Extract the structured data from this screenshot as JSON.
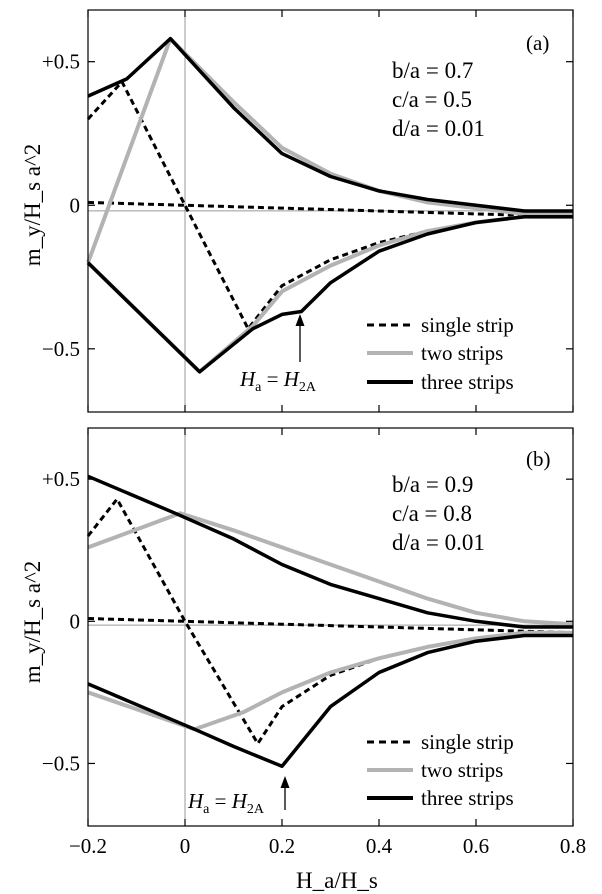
{
  "colors": {
    "dashed": "#000000",
    "gray": "#b3b3b3",
    "black": "#000000"
  },
  "chart_data": [
    {
      "type": "line",
      "panel_label": "(a)",
      "annotation_lines": [
        "b/a = 0.7",
        "c/a = 0.5",
        "d/a = 0.01"
      ],
      "ylabel": "m_y/H_s a^2",
      "xlabel": "",
      "xlim": [
        -0.2,
        0.8
      ],
      "ylim": [
        -0.72,
        0.68
      ],
      "yticks": [
        {
          "value": 0.5,
          "label": "+0.5"
        },
        {
          "value": 0.0,
          "label": "0"
        },
        {
          "value": -0.5,
          "label": "−0.5"
        }
      ],
      "xticks": [
        -0.2,
        0,
        0.2,
        0.4,
        0.6,
        0.8
      ],
      "xtick_labels": [],
      "legend": {
        "position": "bottom-right",
        "entries": [
          "single strip",
          "two strips",
          "three strips"
        ]
      },
      "arrow_annotation": {
        "text": "Ha = H2A",
        "x": 0.24,
        "y": -0.37
      },
      "series": [
        {
          "name": "single strip",
          "style": "dashed",
          "segments": [
            {
              "x": [
                -0.2,
                -0.13,
                0.0,
                0.13,
                0.2,
                0.3,
                0.4,
                0.5,
                0.6,
                0.7,
                0.8
              ],
              "y": [
                0.3,
                0.43,
                0.0,
                -0.43,
                -0.28,
                -0.19,
                -0.13,
                -0.09,
                -0.06,
                -0.04,
                -0.04
              ]
            },
            {
              "x": [
                -0.2,
                0.0,
                0.2,
                0.4,
                0.6,
                0.8
              ],
              "y": [
                0.01,
                0.0,
                -0.01,
                -0.02,
                -0.03,
                -0.04
              ]
            }
          ]
        },
        {
          "name": "two strips",
          "style": "gray",
          "segments": [
            {
              "x": [
                -0.2,
                -0.03,
                0.1,
                0.2,
                0.3,
                0.4,
                0.5,
                0.6,
                0.7,
                0.8
              ],
              "y": [
                -0.2,
                0.58,
                0.36,
                0.2,
                0.11,
                0.05,
                0.01,
                -0.01,
                -0.03,
                -0.03
              ]
            },
            {
              "x": [
                -0.2,
                0.03,
                0.14,
                0.2,
                0.3,
                0.4,
                0.5,
                0.6,
                0.7,
                0.8
              ],
              "y": [
                -0.2,
                -0.58,
                -0.42,
                -0.3,
                -0.21,
                -0.14,
                -0.09,
                -0.06,
                -0.04,
                -0.04
              ]
            }
          ]
        },
        {
          "name": "three strips",
          "style": "black",
          "segments": [
            {
              "x": [
                -0.2,
                -0.12,
                -0.03,
                0.1,
                0.2,
                0.3,
                0.4,
                0.5,
                0.6,
                0.7,
                0.8
              ],
              "y": [
                0.38,
                0.44,
                0.58,
                0.34,
                0.18,
                0.1,
                0.05,
                0.02,
                0.0,
                -0.02,
                -0.02
              ]
            },
            {
              "x": [
                -0.2,
                0.03,
                0.14,
                0.2,
                0.24,
                0.3,
                0.4,
                0.5,
                0.6,
                0.7,
                0.8
              ],
              "y": [
                -0.2,
                -0.58,
                -0.43,
                -0.38,
                -0.37,
                -0.27,
                -0.16,
                -0.1,
                -0.06,
                -0.04,
                -0.04
              ]
            }
          ]
        }
      ]
    },
    {
      "type": "line",
      "panel_label": "(b)",
      "annotation_lines": [
        "b/a = 0.9",
        "c/a = 0.8",
        "d/a = 0.01"
      ],
      "ylabel": "m_y/H_s a^2",
      "xlabel": "H_a/H_s",
      "xlim": [
        -0.2,
        0.8
      ],
      "ylim": [
        -0.72,
        0.68
      ],
      "yticks": [
        {
          "value": 0.5,
          "label": "+0.5"
        },
        {
          "value": 0.0,
          "label": "0"
        },
        {
          "value": -0.5,
          "label": "−0.5"
        }
      ],
      "xticks": [
        -0.2,
        0,
        0.2,
        0.4,
        0.6,
        0.8
      ],
      "xtick_labels": [
        "−0.2",
        "0",
        "0.2",
        "0.4",
        "0.6",
        "0.8"
      ],
      "legend": {
        "position": "bottom-right",
        "entries": [
          "single strip",
          "two strips",
          "three strips"
        ]
      },
      "arrow_annotation": {
        "text": "Ha = H2A",
        "x": 0.2,
        "y": -0.51
      },
      "series": [
        {
          "name": "single strip",
          "style": "dashed",
          "segments": [
            {
              "x": [
                -0.2,
                -0.14,
                0.0,
                0.15,
                0.2,
                0.3,
                0.4,
                0.5,
                0.6,
                0.7,
                0.8
              ],
              "y": [
                0.3,
                0.43,
                0.0,
                -0.43,
                -0.3,
                -0.19,
                -0.13,
                -0.09,
                -0.06,
                -0.04,
                -0.04
              ]
            },
            {
              "x": [
                -0.2,
                0.0,
                0.2,
                0.4,
                0.6,
                0.8
              ],
              "y": [
                0.01,
                0.0,
                -0.01,
                -0.02,
                -0.03,
                -0.04
              ]
            }
          ]
        },
        {
          "name": "two strips",
          "style": "gray",
          "segments": [
            {
              "x": [
                -0.2,
                -0.01,
                0.1,
                0.2,
                0.3,
                0.4,
                0.5,
                0.6,
                0.7,
                0.8
              ],
              "y": [
                0.26,
                0.38,
                0.32,
                0.26,
                0.2,
                0.14,
                0.08,
                0.03,
                0.0,
                -0.01
              ]
            },
            {
              "x": [
                -0.2,
                0.02,
                0.12,
                0.2,
                0.3,
                0.4,
                0.5,
                0.6,
                0.7,
                0.8
              ],
              "y": [
                -0.25,
                -0.38,
                -0.32,
                -0.25,
                -0.18,
                -0.13,
                -0.09,
                -0.06,
                -0.04,
                -0.04
              ]
            }
          ]
        },
        {
          "name": "three strips",
          "style": "black",
          "segments": [
            {
              "x": [
                -0.2,
                -0.02,
                0.1,
                0.2,
                0.3,
                0.4,
                0.5,
                0.6,
                0.7,
                0.8
              ],
              "y": [
                0.51,
                0.38,
                0.29,
                0.2,
                0.13,
                0.08,
                0.03,
                0.0,
                -0.02,
                -0.02
              ]
            },
            {
              "x": [
                -0.2,
                0.02,
                0.1,
                0.2,
                0.3,
                0.4,
                0.5,
                0.6,
                0.7,
                0.8
              ],
              "y": [
                -0.22,
                -0.38,
                -0.44,
                -0.51,
                -0.3,
                -0.18,
                -0.11,
                -0.07,
                -0.05,
                -0.05
              ]
            }
          ]
        }
      ]
    }
  ]
}
